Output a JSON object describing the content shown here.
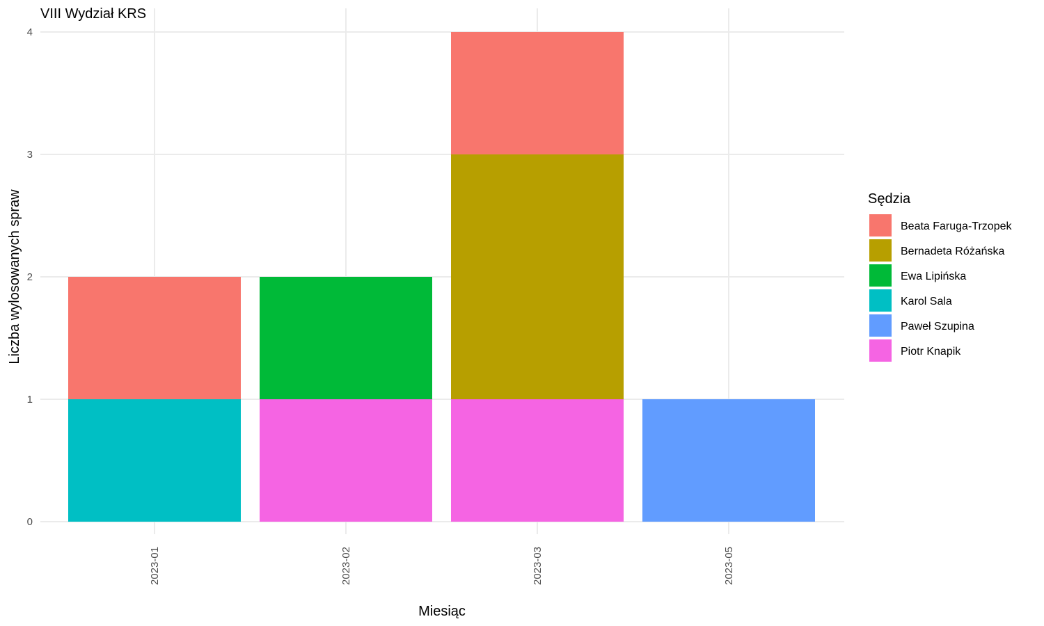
{
  "chart_data": {
    "type": "bar",
    "stacked": true,
    "title": "VIII Wydział KRS",
    "xlabel": "Miesiąc",
    "ylabel": "Liczba wylosowanych spraw",
    "categories": [
      "2023-01",
      "2023-02",
      "2023-03",
      "2023-05"
    ],
    "ylim": [
      0,
      4
    ],
    "yticks": [
      0,
      1,
      2,
      3,
      4
    ],
    "grid": true,
    "legend": {
      "title": "Sędzia",
      "placement": "right"
    },
    "series": [
      {
        "name": "Beata Faruga-Trzopek",
        "color": "#F8766D",
        "values": [
          1,
          0,
          1,
          0
        ]
      },
      {
        "name": "Bernadeta Różańska",
        "color": "#B79F00",
        "values": [
          0,
          0,
          2,
          0
        ]
      },
      {
        "name": "Ewa Lipińska",
        "color": "#00BA38",
        "values": [
          0,
          1,
          0,
          0
        ]
      },
      {
        "name": "Karol Sala",
        "color": "#00BFC4",
        "values": [
          1,
          0,
          0,
          0
        ]
      },
      {
        "name": "Paweł Szupina",
        "color": "#619CFF",
        "values": [
          0,
          0,
          0,
          1
        ]
      },
      {
        "name": "Piotr Knapik",
        "color": "#F564E3",
        "values": [
          0,
          1,
          1,
          0
        ]
      }
    ]
  }
}
